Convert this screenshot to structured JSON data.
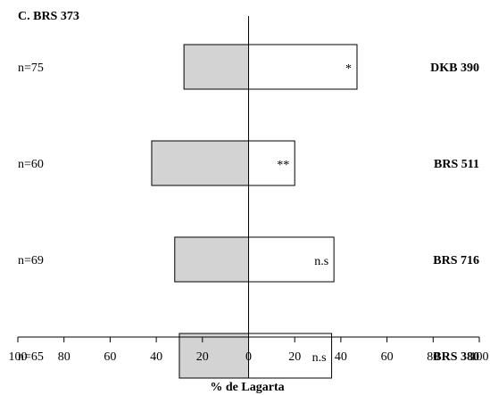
{
  "chart_data": {
    "type": "bar",
    "orientation": "horizontal-diverging",
    "panel_label": "C. BRS 373",
    "xlabel": "% de Lagarta",
    "xlim": [
      -100,
      100
    ],
    "xticks": [
      -100,
      -80,
      -60,
      -40,
      -20,
      0,
      20,
      40,
      60,
      80,
      100
    ],
    "xtick_labels": [
      "100",
      "80",
      "60",
      "40",
      "20",
      "0",
      "20",
      "40",
      "60",
      "80",
      "100"
    ],
    "grid": false,
    "categories": [
      "DKB 390",
      "BRS 511",
      "BRS 716",
      "BRS 380"
    ],
    "sample_sizes": [
      "n=75",
      "n=60",
      "n=69",
      "n=65"
    ],
    "significance": [
      "*",
      "**",
      "n.s",
      "n.s"
    ],
    "series": [
      {
        "side": "left",
        "values": [
          28,
          42,
          32,
          30
        ],
        "color": "#d3d3d3"
      },
      {
        "side": "right",
        "values": [
          47,
          20,
          37,
          36
        ],
        "color": "#ffffff"
      }
    ]
  }
}
